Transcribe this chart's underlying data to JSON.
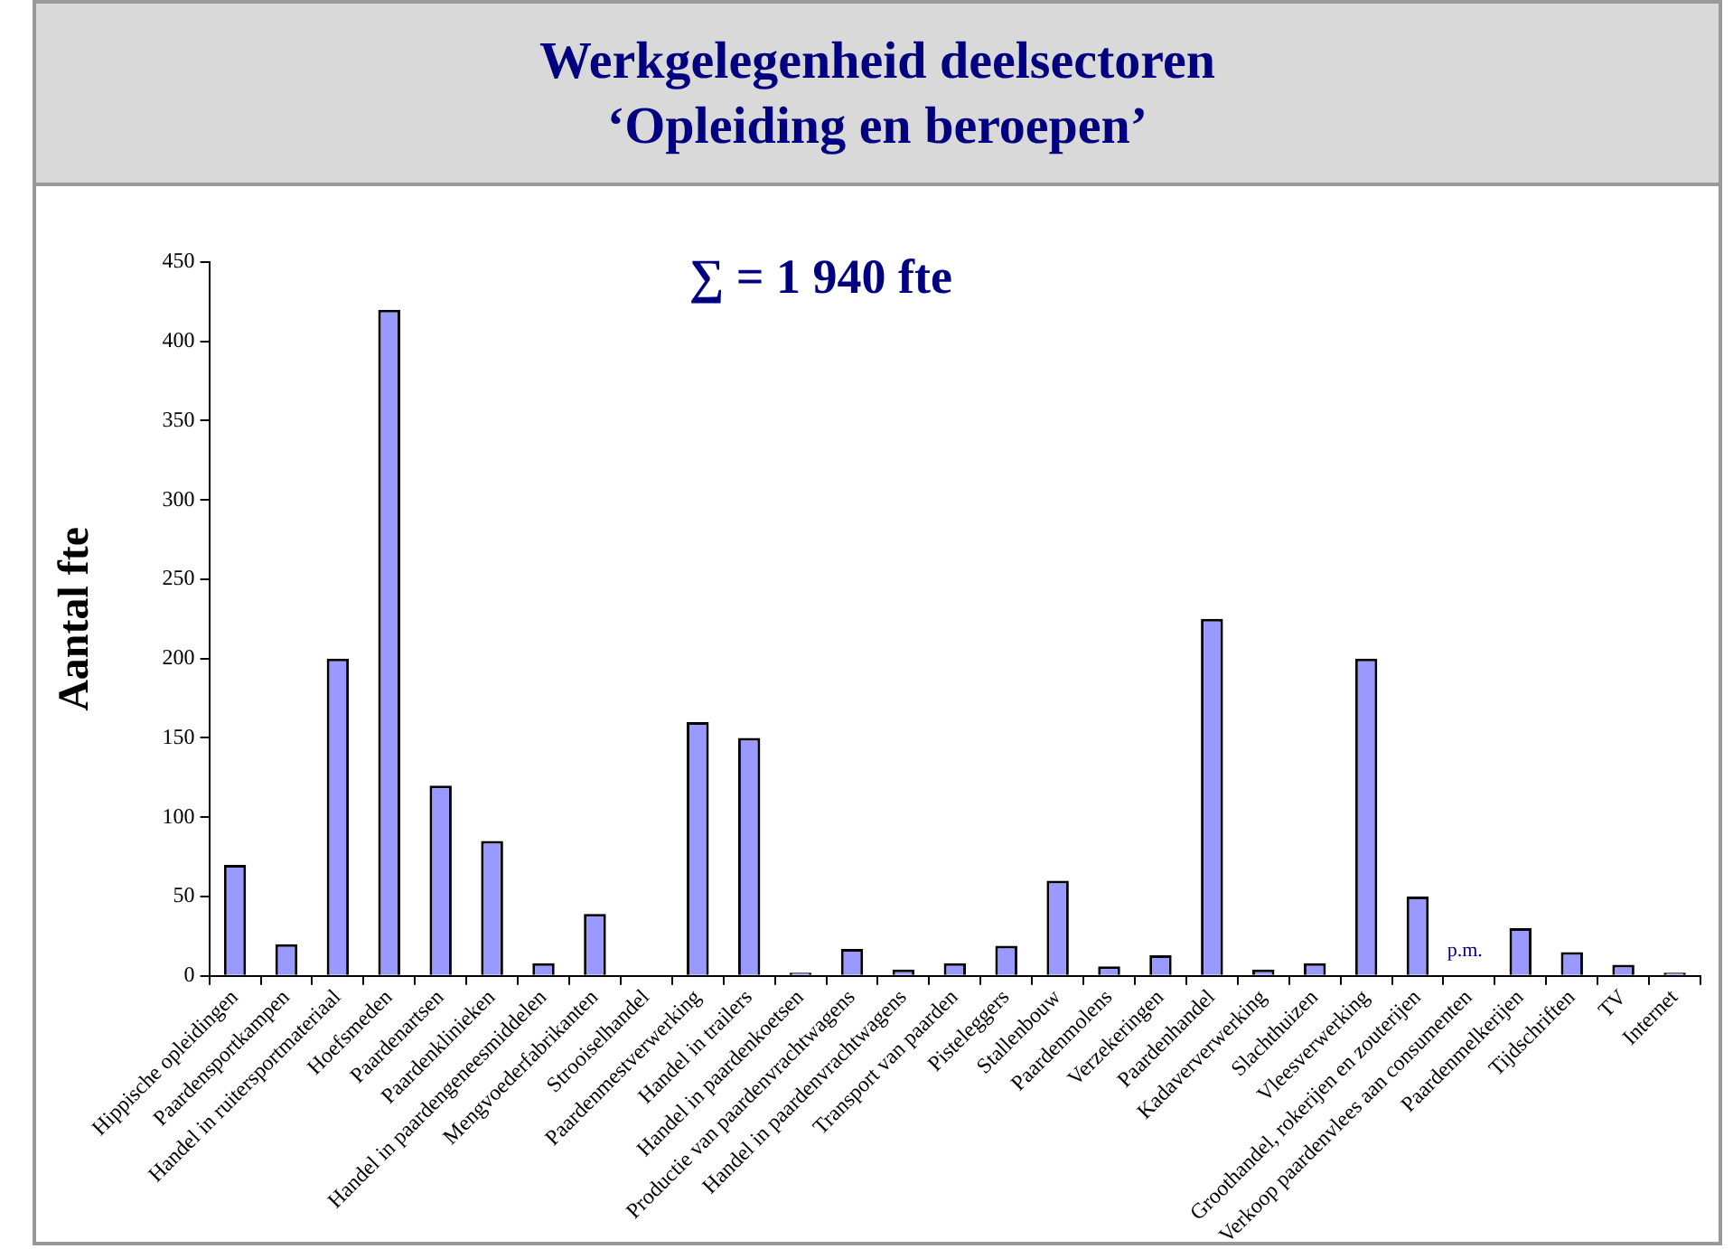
{
  "chart_data": {
    "type": "bar",
    "title": "Werkgelegenheid deelsectoren",
    "subtitle": "‘Opleiding en beroepen’",
    "ylabel": "Aantal fte",
    "categories": [
      "Hippische opleidingen",
      "Paardensportkampen",
      "Handel in ruitersportmateriaal",
      "Hoefsmeden",
      "Paardenartsen",
      "Paardenklinieken",
      "Handel in paardengeneesmiddelen",
      "Mengvoederfabrikanten",
      "Strooiselhandel",
      "Paardenmestverwerking",
      "Handel in trailers",
      "Handel in paardenkoetsen",
      "Productie van paardenvrachtwagens",
      "Handel in paardenvrachtwagens",
      "Transport van paarden",
      "Pisteleggers",
      "Stallenbouw",
      "Paardenmolens",
      "Verzekeringen",
      "Paardenhandel",
      "Kadaververwerking",
      "Slachthuizen",
      "Vleesverwerking",
      "Groothandel, rokerijen en zouterijen",
      "Verkoop paardenvlees aan consumenten",
      "Paardenmelkerijen",
      "Tijdschriften",
      "TV",
      "Internet"
    ],
    "values": [
      70,
      20,
      200,
      420,
      120,
      85,
      8,
      39,
      null,
      160,
      150,
      2,
      17,
      4,
      8,
      19,
      60,
      6,
      13,
      225,
      4,
      8,
      200,
      50,
      null,
      30,
      15,
      7,
      2
    ],
    "color": "#9999ff",
    "ylim": [
      0,
      450
    ],
    "yticks": [
      0,
      50,
      100,
      150,
      200,
      250,
      300,
      350,
      400,
      450
    ],
    "grid": false,
    "legend": false,
    "annotations": [
      "∑ = 1 940 fte",
      "p.m."
    ]
  }
}
